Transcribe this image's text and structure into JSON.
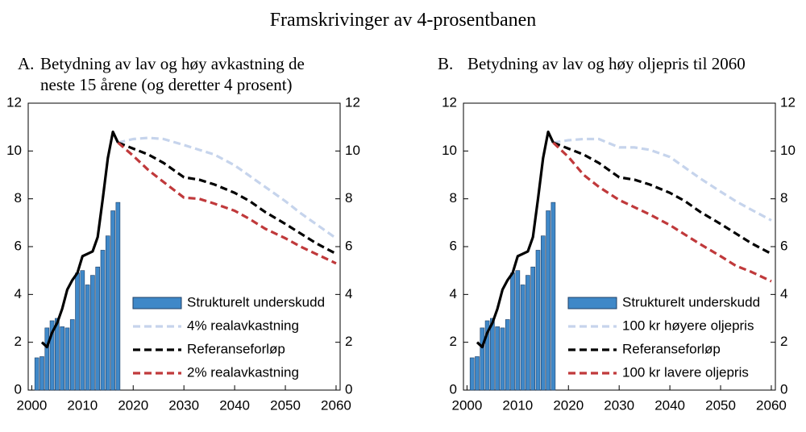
{
  "title": "Framskrivinger av 4-prosentbanen",
  "chart_data": [
    {
      "type": "combo",
      "label": "A.",
      "title": "Betydning av lav og høy avkastning de neste 15 årene (og deretter 4 prosent)",
      "xlim": [
        1999.3,
        2060.8
      ],
      "xticks": [
        2000,
        2010,
        2020,
        2030,
        2040,
        2050,
        2060
      ],
      "ylim": [
        0,
        12
      ],
      "yticks": [
        0,
        2,
        4,
        6,
        8,
        10,
        12
      ],
      "y2lim": [
        0,
        12
      ],
      "y2ticks": [
        0,
        2,
        4,
        6,
        8,
        10,
        12
      ],
      "legend": "lower right",
      "series": [
        {
          "name": "Strukturelt underskudd",
          "type": "bar",
          "color": "#3f88c8",
          "x": [
            2001,
            2002,
            2003,
            2004,
            2005,
            2006,
            2007,
            2008,
            2009,
            2010,
            2011,
            2012,
            2013,
            2014,
            2015,
            2016,
            2017
          ],
          "values": [
            1.35,
            1.4,
            2.6,
            2.9,
            3.0,
            2.65,
            2.6,
            2.95,
            4.9,
            5.0,
            4.4,
            4.8,
            5.15,
            5.85,
            6.45,
            7.5,
            7.85
          ]
        },
        {
          "name": "4% realavkastning",
          "type": "line",
          "dash": true,
          "color": "#c6d4ec",
          "x": [
            2017,
            2020,
            2023,
            2026,
            2030,
            2033,
            2036,
            2040,
            2043,
            2046,
            2050,
            2053,
            2056,
            2060
          ],
          "values": [
            10.35,
            10.5,
            10.55,
            10.5,
            10.25,
            10.05,
            9.85,
            9.4,
            8.95,
            8.5,
            7.9,
            7.4,
            6.95,
            6.35
          ]
        },
        {
          "name": "Referanseforløp",
          "type": "line",
          "dash": true,
          "color": "#000000",
          "x": [
            2017,
            2020,
            2023,
            2026,
            2030,
            2033,
            2036,
            2040,
            2043,
            2046,
            2050,
            2053,
            2056,
            2060
          ],
          "values": [
            10.35,
            10.1,
            9.85,
            9.5,
            8.9,
            8.8,
            8.6,
            8.25,
            7.9,
            7.45,
            6.95,
            6.55,
            6.15,
            5.7
          ]
        },
        {
          "name": "2% realavkastning",
          "type": "line",
          "dash": true,
          "color": "#c0393b",
          "x": [
            2017,
            2020,
            2023,
            2026,
            2030,
            2033,
            2036,
            2040,
            2043,
            2046,
            2050,
            2053,
            2056,
            2060
          ],
          "values": [
            10.35,
            9.8,
            9.2,
            8.7,
            8.05,
            8.0,
            7.8,
            7.5,
            7.15,
            6.75,
            6.35,
            6.0,
            5.7,
            5.3
          ]
        },
        {
          "type": "line",
          "dash": false,
          "color": "#000000",
          "x": [
            2002,
            2003,
            2004,
            2005,
            2006,
            2007,
            2008,
            2009,
            2010,
            2011,
            2012,
            2013,
            2014,
            2015,
            2016,
            2017
          ],
          "values": [
            2.0,
            1.8,
            2.4,
            2.8,
            3.4,
            4.2,
            4.6,
            4.9,
            5.6,
            5.7,
            5.8,
            6.4,
            8.0,
            9.7,
            10.8,
            10.35
          ]
        }
      ]
    },
    {
      "type": "combo",
      "label": "B.",
      "title": "Betydning av lav og høy oljepris til 2060",
      "xlim": [
        1999.3,
        2060.8
      ],
      "xticks": [
        2000,
        2010,
        2020,
        2030,
        2040,
        2050,
        2060
      ],
      "ylim": [
        0,
        12
      ],
      "yticks": [
        0,
        2,
        4,
        6,
        8,
        10,
        12
      ],
      "y2lim": [
        0,
        12
      ],
      "y2ticks": [
        0,
        2,
        4,
        6,
        8,
        10,
        12
      ],
      "legend": "lower right",
      "series": [
        {
          "name": "Strukturelt underskudd",
          "type": "bar",
          "color": "#3f88c8",
          "x": [
            2001,
            2002,
            2003,
            2004,
            2005,
            2006,
            2007,
            2008,
            2009,
            2010,
            2011,
            2012,
            2013,
            2014,
            2015,
            2016,
            2017
          ],
          "values": [
            1.35,
            1.4,
            2.6,
            2.9,
            3.0,
            2.65,
            2.6,
            2.95,
            4.9,
            5.0,
            4.4,
            4.8,
            5.15,
            5.85,
            6.45,
            7.5,
            7.85
          ]
        },
        {
          "name": "100 kr høyere oljepris",
          "type": "line",
          "dash": true,
          "color": "#c6d4ec",
          "x": [
            2017,
            2020,
            2023,
            2026,
            2030,
            2033,
            2036,
            2040,
            2043,
            2046,
            2050,
            2053,
            2056,
            2060
          ],
          "values": [
            10.35,
            10.45,
            10.5,
            10.5,
            10.15,
            10.15,
            10.05,
            9.75,
            9.3,
            8.85,
            8.3,
            7.9,
            7.55,
            7.1
          ]
        },
        {
          "name": "Referanseforløp",
          "type": "line",
          "dash": true,
          "color": "#000000",
          "x": [
            2017,
            2020,
            2023,
            2026,
            2030,
            2033,
            2036,
            2040,
            2043,
            2046,
            2050,
            2053,
            2056,
            2060
          ],
          "values": [
            10.35,
            10.1,
            9.85,
            9.5,
            8.9,
            8.8,
            8.6,
            8.25,
            7.9,
            7.45,
            6.95,
            6.55,
            6.15,
            5.7
          ]
        },
        {
          "name": "100 kr lavere oljepris",
          "type": "line",
          "dash": true,
          "color": "#c0393b",
          "x": [
            2017,
            2020,
            2023,
            2026,
            2030,
            2033,
            2036,
            2040,
            2043,
            2046,
            2050,
            2053,
            2056,
            2060
          ],
          "values": [
            10.35,
            9.75,
            9.0,
            8.5,
            7.95,
            7.65,
            7.35,
            6.9,
            6.5,
            6.1,
            5.6,
            5.2,
            4.95,
            4.55
          ]
        },
        {
          "type": "line",
          "dash": false,
          "color": "#000000",
          "x": [
            2002,
            2003,
            2004,
            2005,
            2006,
            2007,
            2008,
            2009,
            2010,
            2011,
            2012,
            2013,
            2014,
            2015,
            2016,
            2017
          ],
          "values": [
            2.0,
            1.8,
            2.4,
            2.8,
            3.4,
            4.2,
            4.6,
            4.9,
            5.6,
            5.7,
            5.8,
            6.4,
            8.0,
            9.7,
            10.8,
            10.35
          ]
        }
      ]
    }
  ]
}
